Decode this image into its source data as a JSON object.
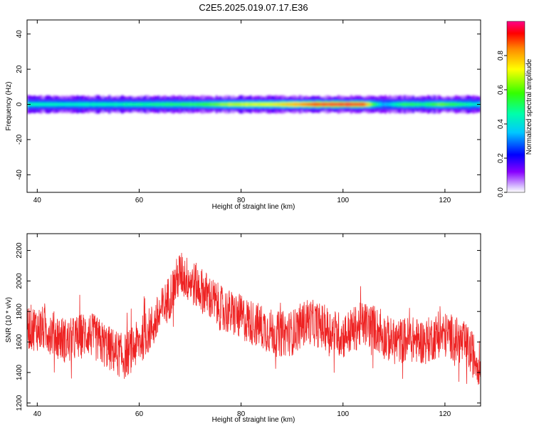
{
  "title": "C2E5.2025.019.07.17.E36",
  "top_panel": {
    "xlabel": "Height of straight line (km)",
    "ylabel": "Frequency (Hz)",
    "colorbar_label": "Normalized spectral amplitude"
  },
  "bottom_panel": {
    "xlabel": "Height of straight line (km)",
    "ylabel": "SNR (10 * v/v)"
  },
  "colors": {
    "snr_line": "#ee2222",
    "axis": "#000000",
    "background": "#ffffff"
  },
  "chart_data": [
    {
      "type": "heatmap",
      "xlabel": "Height of straight line (km)",
      "ylabel": "Frequency (Hz)",
      "xlim": [
        38,
        127
      ],
      "ylim": [
        -50,
        48
      ],
      "x_ticks": [
        40,
        60,
        80,
        100,
        120
      ],
      "x_tick_labels": [
        "40",
        "60",
        "80",
        "100",
        "120"
      ],
      "y_ticks": [
        -40,
        -20,
        0,
        20,
        40
      ],
      "y_tick_labels": [
        "-40",
        "-20",
        "0",
        "20",
        "40"
      ],
      "colorbar": {
        "label": "Normalized spectral amplitude",
        "range": [
          0,
          1
        ],
        "ticks": [
          0.0,
          0.2,
          0.4,
          0.6,
          0.8
        ],
        "tick_labels": [
          "0.0",
          "0.2",
          "0.4",
          "0.6",
          "0.8"
        ]
      },
      "band_center_hz": 0,
      "band_halfwidth_hz": 2.5,
      "amplitude_profile": {
        "x": [
          38,
          45,
          55,
          65,
          72,
          78,
          85,
          90,
          95,
          100,
          104,
          106,
          108,
          112,
          116,
          119,
          123,
          127
        ],
        "amplitude": [
          0.45,
          0.42,
          0.45,
          0.5,
          0.55,
          0.68,
          0.7,
          0.8,
          0.93,
          0.95,
          0.93,
          0.55,
          0.32,
          0.55,
          0.5,
          0.62,
          0.5,
          0.4
        ]
      }
    },
    {
      "type": "line",
      "xlabel": "Height of straight line (km)",
      "ylabel": "SNR (10 * v/v)",
      "xlim": [
        38,
        127
      ],
      "ylim": [
        1180,
        2310
      ],
      "x_ticks": [
        40,
        60,
        80,
        100,
        120
      ],
      "x_tick_labels": [
        "40",
        "60",
        "80",
        "100",
        "120"
      ],
      "y_ticks": [
        1200,
        1400,
        1600,
        1800,
        2000,
        2200
      ],
      "y_tick_labels": [
        "1200",
        "1400",
        "1600",
        "1800",
        "2000",
        "2200"
      ],
      "trend": {
        "x": [
          38,
          42,
          46,
          50,
          54,
          57,
          60,
          63,
          66,
          68,
          70,
          73,
          76,
          80,
          84,
          87,
          90,
          93,
          96,
          100,
          104,
          106,
          108,
          110,
          113,
          116,
          119,
          121,
          124,
          127
        ],
        "y": [
          1700,
          1680,
          1600,
          1660,
          1560,
          1500,
          1600,
          1720,
          1900,
          2050,
          2000,
          1920,
          1820,
          1760,
          1700,
          1650,
          1660,
          1740,
          1700,
          1640,
          1720,
          1700,
          1640,
          1600,
          1620,
          1600,
          1650,
          1640,
          1580,
          1450
        ]
      },
      "noise_amplitude": 150
    }
  ]
}
